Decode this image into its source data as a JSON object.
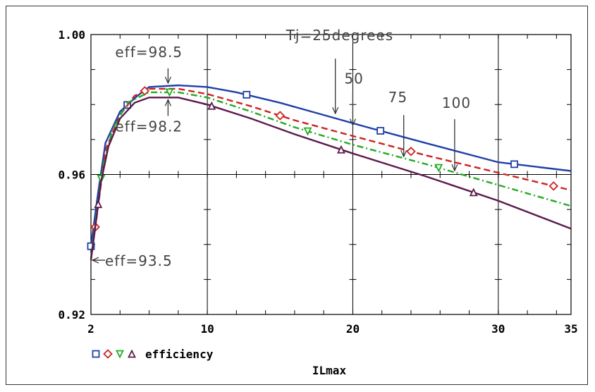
{
  "chart_data": {
    "type": "line",
    "title": "",
    "xlabel": "ILmax",
    "ylabel": "",
    "xlim": [
      2,
      35
    ],
    "ylim": [
      0.92,
      1.0
    ],
    "x_ticks": [
      {
        "value": 2,
        "label": "2"
      },
      {
        "value": 10,
        "label": "10"
      },
      {
        "value": 20,
        "label": "20"
      },
      {
        "value": 30,
        "label": "30"
      },
      {
        "value": 35,
        "label": "35"
      }
    ],
    "y_ticks": [
      {
        "value": 0.92,
        "label": "0.92"
      },
      {
        "value": 0.96,
        "label": "0.96"
      },
      {
        "value": 1.0,
        "label": "1.00"
      }
    ],
    "grid": true,
    "legend": {
      "placement": "bottom-left",
      "label": "efficiency"
    },
    "series": [
      {
        "color": "#1f3fa8",
        "dash": "solid",
        "marker": "square",
        "points": [
          [
            2,
            0.9395
          ],
          [
            2.5,
            0.955
          ],
          [
            3,
            0.969
          ],
          [
            4,
            0.978
          ],
          [
            5.2,
            0.9825
          ],
          [
            6,
            0.985
          ],
          [
            8,
            0.9855
          ],
          [
            10,
            0.985
          ],
          [
            12,
            0.9835
          ],
          [
            15,
            0.9805
          ],
          [
            18,
            0.977
          ],
          [
            21,
            0.9735
          ],
          [
            25,
            0.969
          ],
          [
            30,
            0.9635
          ],
          [
            35,
            0.961
          ]
        ],
        "marker_x": [
          2,
          4.5,
          12.7,
          21.9,
          31.1
        ]
      },
      {
        "color": "#cc2222",
        "dash": "dashed",
        "marker": "diamond",
        "points": [
          [
            2,
            0.936
          ],
          [
            2.4,
            0.948
          ],
          [
            3,
            0.967
          ],
          [
            4,
            0.977
          ],
          [
            5,
            0.9825
          ],
          [
            6,
            0.9845
          ],
          [
            8,
            0.9845
          ],
          [
            10,
            0.983
          ],
          [
            13,
            0.9795
          ],
          [
            16,
            0.9755
          ],
          [
            20,
            0.971
          ],
          [
            25,
            0.9655
          ],
          [
            30,
            0.9605
          ],
          [
            35,
            0.9555
          ]
        ],
        "marker_x": [
          2.3,
          5.7,
          15.0,
          24.0,
          33.8
        ]
      },
      {
        "color": "#22aa22",
        "dash": "dashdot",
        "marker": "triangle-down",
        "points": [
          [
            2,
            0.936
          ],
          [
            2.3,
            0.946
          ],
          [
            2.8,
            0.962
          ],
          [
            3.5,
            0.973
          ],
          [
            4.5,
            0.9805
          ],
          [
            6,
            0.9835
          ],
          [
            8,
            0.9835
          ],
          [
            10,
            0.982
          ],
          [
            13,
            0.978
          ],
          [
            16,
            0.9735
          ],
          [
            20,
            0.9685
          ],
          [
            25,
            0.963
          ],
          [
            30,
            0.957
          ],
          [
            35,
            0.951
          ]
        ],
        "marker_x": [
          2.7,
          7.4,
          16.9,
          25.9
        ]
      },
      {
        "color": "#5c1a4a",
        "dash": "solid",
        "marker": "triangle-up",
        "points": [
          [
            2,
            0.9355
          ],
          [
            2.3,
            0.945
          ],
          [
            2.7,
            0.958
          ],
          [
            3.2,
            0.968
          ],
          [
            4,
            0.976
          ],
          [
            5,
            0.9805
          ],
          [
            6,
            0.982
          ],
          [
            8,
            0.982
          ],
          [
            10,
            0.98
          ],
          [
            13,
            0.976
          ],
          [
            16,
            0.9715
          ],
          [
            20,
            0.966
          ],
          [
            25,
            0.9595
          ],
          [
            30,
            0.9525
          ],
          [
            35,
            0.9445
          ]
        ],
        "marker_x": [
          2.5,
          10.3,
          19.2,
          28.3
        ]
      }
    ],
    "annotations": [
      {
        "text": "eff=98.5",
        "x": 7.3,
        "y": 0.9855
      },
      {
        "text": "eff=98.2",
        "x": 7.3,
        "y": 0.982
      },
      {
        "text": "eff=93.5",
        "x": 2.0,
        "y": 0.9355
      },
      {
        "text": "Tj=25degrees",
        "x": 18.8,
        "y": 0.977
      },
      {
        "text": "50",
        "x": 20.0,
        "y": 0.9735
      },
      {
        "text": "75",
        "x": 23.5,
        "y": 0.9645
      },
      {
        "text": "100",
        "x": 27.0,
        "y": 0.9605
      }
    ]
  }
}
